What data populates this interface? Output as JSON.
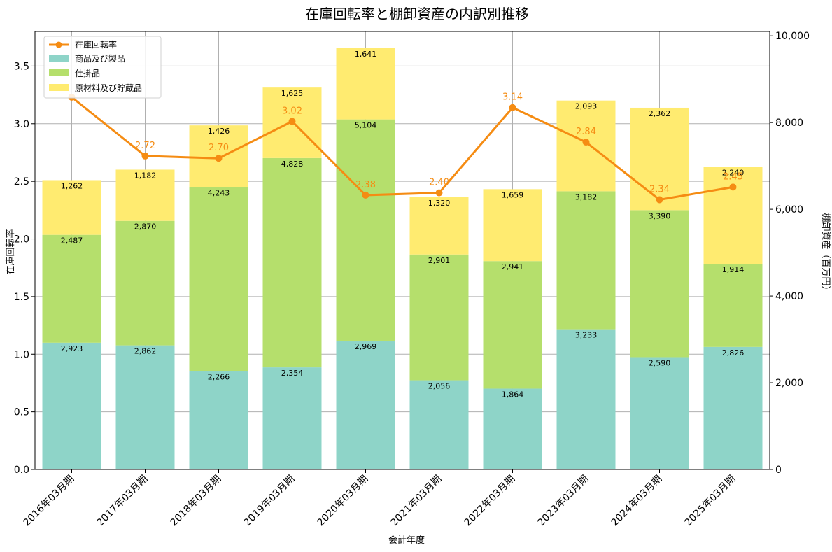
{
  "chart_data": {
    "type": "bar",
    "title": "在庫回転率と棚卸資産の内訳別推移",
    "xlabel": "会計年度",
    "ylabel_left": "在庫回転率",
    "ylabel_right": "棚卸資産（百万円）",
    "categories": [
      "2016年03月期",
      "2017年03月期",
      "2018年03月期",
      "2019年03月期",
      "2020年03月期",
      "2021年03月期",
      "2022年03月期",
      "2023年03月期",
      "2024年03月期",
      "2025年03月期"
    ],
    "series": [
      {
        "name": "商品及び製品",
        "type": "bar",
        "axis": "right",
        "color": "#8ed4c8",
        "values": [
          2923,
          2862,
          2266,
          2354,
          2969,
          2056,
          1864,
          3233,
          2590,
          2826
        ],
        "labels": [
          "2,923",
          "2,862",
          "2,266",
          "2,354",
          "2,969",
          "2,056",
          "1,864",
          "3,233",
          "2,590",
          "2,826"
        ]
      },
      {
        "name": "仕掛品",
        "type": "bar",
        "axis": "right",
        "color": "#b5df6c",
        "values": [
          2487,
          2870,
          4243,
          4828,
          5104,
          2901,
          2941,
          3182,
          3390,
          1914
        ],
        "labels": [
          "2,487",
          "2,870",
          "4,243",
          "4,828",
          "5,104",
          "2,901",
          "2,941",
          "3,182",
          "3,390",
          "1,914"
        ]
      },
      {
        "name": "原材料及び貯蔵品",
        "type": "bar",
        "axis": "right",
        "color": "#ffeb70",
        "values": [
          1262,
          1182,
          1426,
          1625,
          1641,
          1320,
          1659,
          2093,
          2362,
          2240
        ],
        "labels": [
          "1,262",
          "1,182",
          "1,426",
          "1,625",
          "1,641",
          "1,320",
          "1,659",
          "2,093",
          "2,362",
          "2,240"
        ]
      },
      {
        "name": "在庫回転率",
        "type": "line",
        "axis": "left",
        "color": "#f58c13",
        "values": [
          3.23,
          2.72,
          2.7,
          3.02,
          2.38,
          2.4,
          3.14,
          2.84,
          2.34,
          2.45
        ],
        "labels": [
          "",
          "2.72",
          "2.70",
          "3.02",
          "2.38",
          "2.40",
          "3.14",
          "2.84",
          "2.34",
          "2.45"
        ]
      }
    ],
    "ylim_left": [
      0,
      3.8
    ],
    "yticks_left": [
      "0.0",
      "0.5",
      "1.0",
      "1.5",
      "2.0",
      "2.5",
      "3.0",
      "3.5"
    ],
    "ylim_right": [
      0,
      10100
    ],
    "yticks_right": [
      "0",
      "2,000",
      "4,000",
      "6,000",
      "8,000",
      "10,000"
    ],
    "grid": true,
    "legend_position": "top-left"
  }
}
